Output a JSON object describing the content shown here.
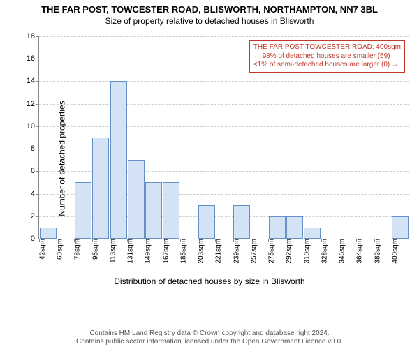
{
  "title_main": "THE FAR POST, TOWCESTER ROAD, BLISWORTH, NORTHAMPTON, NN7 3BL",
  "title_sub": "Size of property relative to detached houses in Blisworth",
  "chart": {
    "type": "histogram",
    "ylabel": "Number of detached properties",
    "xlabel": "Distribution of detached houses by size in Blisworth",
    "ylim": [
      0,
      18
    ],
    "ytick_step": 2,
    "xticks": [
      "42sqm",
      "60sqm",
      "78sqm",
      "95sqm",
      "113sqm",
      "131sqm",
      "149sqm",
      "167sqm",
      "185sqm",
      "203sqm",
      "221sqm",
      "239sqm",
      "257sqm",
      "275sqm",
      "292sqm",
      "310sqm",
      "328sqm",
      "346sqm",
      "364sqm",
      "382sqm",
      "400sqm"
    ],
    "values": [
      1,
      0,
      5,
      9,
      14,
      7,
      5,
      5,
      0,
      3,
      0,
      3,
      0,
      2,
      2,
      1,
      0,
      0,
      0,
      0,
      2
    ],
    "bar_fill": "#d3e3f5",
    "bar_stroke": "#6491c8",
    "bar_width": 0.95,
    "grid_color": "#cccccc",
    "background": "#ffffff",
    "title_fontsize": 13,
    "label_fontsize": 12,
    "tick_fontsize": 10
  },
  "annotation": {
    "line1": "THE FAR POST TOWCESTER ROAD: 400sqm",
    "line2": "← 98% of detached houses are smaller (59)",
    "line3": "<1% of semi-detached houses are larger (0) →",
    "border_color": "#c0392b",
    "text_color": "#c0392b"
  },
  "footer": {
    "line1": "Contains HM Land Registry data © Crown copyright and database right 2024.",
    "line2": "Contains public sector information licensed under the Open Government Licence v3.0."
  }
}
